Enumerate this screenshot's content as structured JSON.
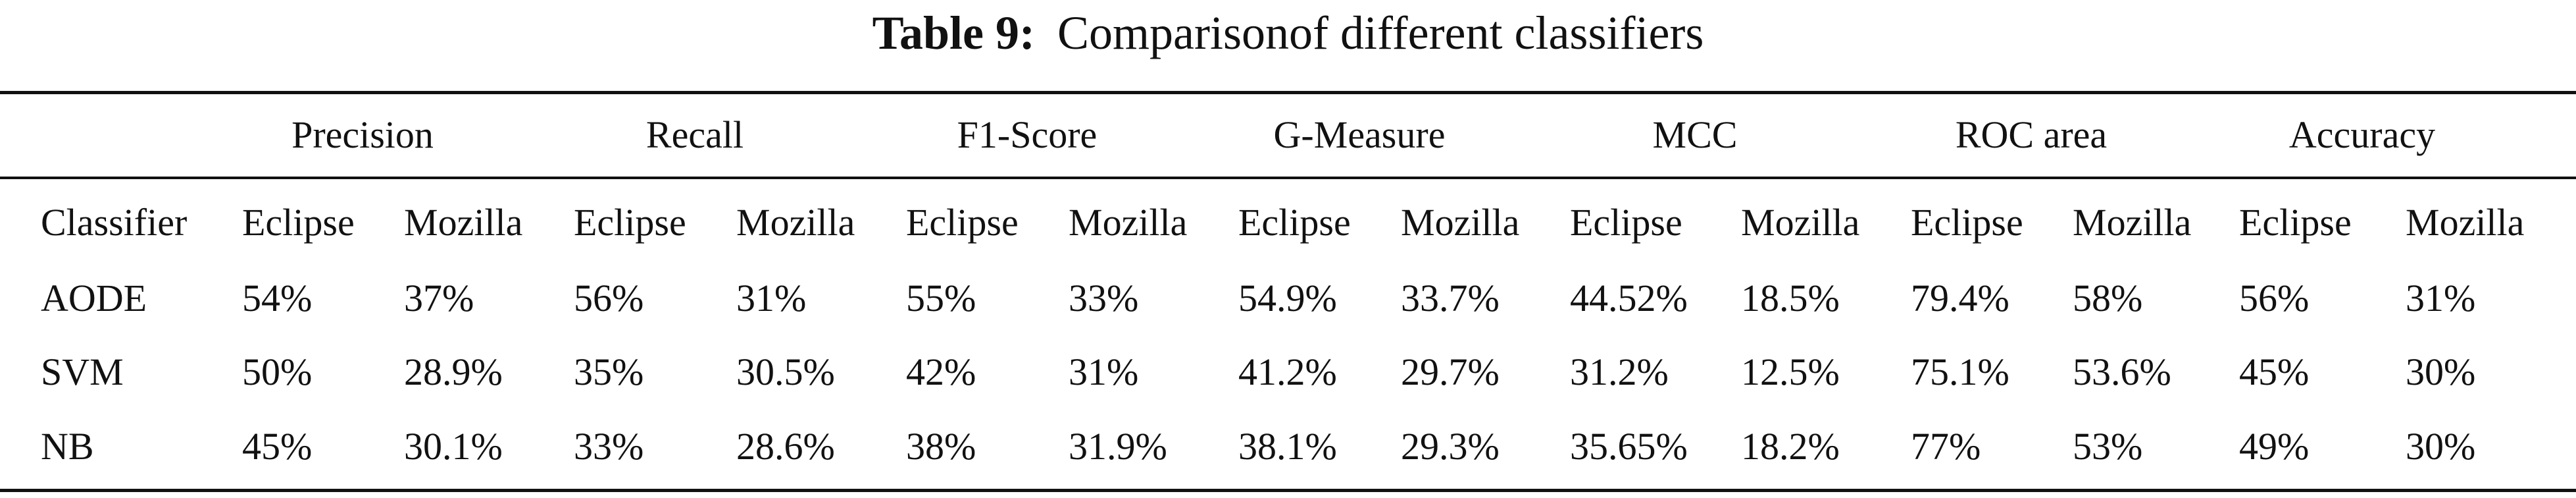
{
  "caption": {
    "label": "Table 9:",
    "text": "Comparisonof different classifiers"
  },
  "table": {
    "groups": [
      "Precision",
      "Recall",
      "F1-Score",
      "G-Measure",
      "MCC",
      "ROC area",
      "Accuracy"
    ],
    "subheader": [
      "Classifier",
      "Eclipse",
      "Mozilla",
      "Eclipse",
      "Mozilla",
      "Eclipse",
      "Mozilla",
      "Eclipse",
      "Mozilla",
      "Eclipse",
      "Mozilla",
      "Eclipse",
      "Mozilla",
      "Eclipse",
      "Mozilla"
    ],
    "rows": [
      [
        "AODE",
        "54%",
        "37%",
        "56%",
        "31%",
        "55%",
        "33%",
        "54.9%",
        "33.7%",
        "44.52%",
        "18.5%",
        "79.4%",
        "58%",
        "56%",
        "31%"
      ],
      [
        "SVM",
        "50%",
        "28.9%",
        "35%",
        "30.5%",
        "42%",
        "31%",
        "41.2%",
        "29.7%",
        "31.2%",
        "12.5%",
        "75.1%",
        "53.6%",
        "45%",
        "30%"
      ],
      [
        "NB",
        "45%",
        "30.1%",
        "33%",
        "28.6%",
        "38%",
        "31.9%",
        "38.1%",
        "29.3%",
        "35.65%",
        "18.2%",
        "77%",
        "53%",
        "49%",
        "30%"
      ]
    ]
  }
}
